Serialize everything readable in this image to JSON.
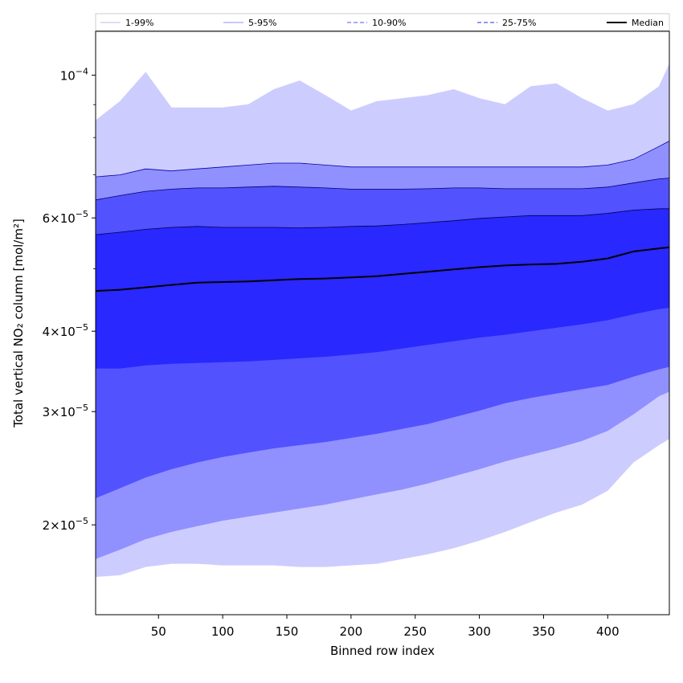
{
  "chart_data": {
    "type": "area",
    "title": "",
    "xlabel": "Binned row index",
    "ylabel": "Total vertical NO₂ column [mol/m²]",
    "yscale": "log",
    "xlim": [
      1,
      448
    ],
    "ylim": [
      1.45e-05,
      0.000117
    ],
    "grid": false,
    "legend_position": "top",
    "x_ticks": [
      {
        "value": 50,
        "label": "50"
      },
      {
        "value": 100,
        "label": "100"
      },
      {
        "value": 150,
        "label": "150"
      },
      {
        "value": 200,
        "label": "200"
      },
      {
        "value": 250,
        "label": "250"
      },
      {
        "value": 300,
        "label": "300"
      },
      {
        "value": 350,
        "label": "350"
      },
      {
        "value": 400,
        "label": "400"
      }
    ],
    "y_ticks": [
      {
        "value": 2e-05,
        "base": "2",
        "exp": "−5"
      },
      {
        "value": 3e-05,
        "base": "3",
        "exp": "−5"
      },
      {
        "value": 4e-05,
        "base": "4",
        "exp": "−5"
      },
      {
        "value": 6e-05,
        "base": "6",
        "exp": "−5"
      },
      {
        "value": 0.0001,
        "base": "",
        "exp": "−4"
      }
    ],
    "y_minor_ticks": [
      5e-05,
      7e-05,
      8e-05,
      9e-05
    ],
    "x": [
      1,
      20,
      40,
      60,
      80,
      100,
      120,
      140,
      160,
      180,
      200,
      220,
      240,
      260,
      280,
      300,
      320,
      340,
      360,
      380,
      400,
      420,
      440,
      448
    ],
    "bands": [
      {
        "name": "1-99%",
        "fill": "#ccccff",
        "stroke": "#ccccff",
        "dash": "",
        "lower": [
          1.66e-05,
          1.67e-05,
          1.72e-05,
          1.74e-05,
          1.74e-05,
          1.73e-05,
          1.73e-05,
          1.73e-05,
          1.72e-05,
          1.72e-05,
          1.73e-05,
          1.74e-05,
          1.77e-05,
          1.8e-05,
          1.84e-05,
          1.89e-05,
          1.95e-05,
          2.02e-05,
          2.09e-05,
          2.15e-05,
          2.26e-05,
          2.5e-05,
          2.66e-05,
          2.72e-05
        ],
        "upper": [
          8.5e-05,
          9.1e-05,
          0.000101,
          8.9e-05,
          8.9e-05,
          8.9e-05,
          9e-05,
          9.5e-05,
          9.8e-05,
          9.3e-05,
          8.8e-05,
          9.1e-05,
          9.2e-05,
          9.3e-05,
          9.5e-05,
          9.2e-05,
          9e-05,
          9.6e-05,
          9.7e-05,
          9.2e-05,
          8.8e-05,
          9e-05,
          9.6e-05,
          0.000104
        ]
      },
      {
        "name": "5-95%",
        "fill": "#9090ff",
        "stroke": "#0000aa",
        "dash": "",
        "lower": [
          1.77e-05,
          1.83e-05,
          1.9e-05,
          1.95e-05,
          1.99e-05,
          2.03e-05,
          2.06e-05,
          2.09e-05,
          2.12e-05,
          2.15e-05,
          2.19e-05,
          2.23e-05,
          2.27e-05,
          2.32e-05,
          2.38e-05,
          2.44e-05,
          2.51e-05,
          2.57e-05,
          2.63e-05,
          2.7e-05,
          2.8e-05,
          2.97e-05,
          3.17e-05,
          3.22e-05
        ],
        "upper": [
          6.95e-05,
          7e-05,
          7.15e-05,
          7.1e-05,
          7.15e-05,
          7.2e-05,
          7.25e-05,
          7.3e-05,
          7.3e-05,
          7.25e-05,
          7.2e-05,
          7.2e-05,
          7.2e-05,
          7.2e-05,
          7.2e-05,
          7.2e-05,
          7.2e-05,
          7.2e-05,
          7.2e-05,
          7.2e-05,
          7.25e-05,
          7.4e-05,
          7.75e-05,
          7.9e-05
        ]
      },
      {
        "name": "10-90%",
        "fill": "#5252ff",
        "stroke": "#00006e",
        "dash": "5,3",
        "lower": [
          2.2e-05,
          2.28e-05,
          2.37e-05,
          2.44e-05,
          2.5e-05,
          2.55e-05,
          2.59e-05,
          2.63e-05,
          2.66e-05,
          2.69e-05,
          2.73e-05,
          2.77e-05,
          2.82e-05,
          2.87e-05,
          2.94e-05,
          3.01e-05,
          3.09e-05,
          3.15e-05,
          3.2e-05,
          3.25e-05,
          3.3e-05,
          3.4e-05,
          3.49e-05,
          3.52e-05
        ],
        "upper": [
          6.4e-05,
          6.5e-05,
          6.6e-05,
          6.65e-05,
          6.68e-05,
          6.68e-05,
          6.7e-05,
          6.72e-05,
          6.7e-05,
          6.68e-05,
          6.65e-05,
          6.65e-05,
          6.65e-05,
          6.66e-05,
          6.68e-05,
          6.68e-05,
          6.66e-05,
          6.66e-05,
          6.66e-05,
          6.66e-05,
          6.7e-05,
          6.8e-05,
          6.9e-05,
          6.92e-05
        ]
      },
      {
        "name": "25-75%",
        "fill": "#2828ff",
        "stroke": "#000050",
        "dash": "5,3",
        "lower": [
          3.5e-05,
          3.5e-05,
          3.54e-05,
          3.56e-05,
          3.57e-05,
          3.58e-05,
          3.59e-05,
          3.61e-05,
          3.63e-05,
          3.65e-05,
          3.68e-05,
          3.71e-05,
          3.76e-05,
          3.81e-05,
          3.86e-05,
          3.91e-05,
          3.95e-05,
          4e-05,
          4.05e-05,
          4.1e-05,
          4.16e-05,
          4.25e-05,
          4.33e-05,
          4.35e-05
        ],
        "upper": [
          5.65e-05,
          5.7e-05,
          5.76e-05,
          5.8e-05,
          5.82e-05,
          5.8e-05,
          5.8e-05,
          5.8e-05,
          5.79e-05,
          5.8e-05,
          5.82e-05,
          5.83e-05,
          5.86e-05,
          5.9e-05,
          5.94e-05,
          5.99e-05,
          6.02e-05,
          6.05e-05,
          6.05e-05,
          6.05e-05,
          6.1e-05,
          6.17e-05,
          6.2e-05,
          6.2e-05
        ]
      }
    ],
    "median": {
      "name": "Median",
      "color": "#000000",
      "values": [
        4.62e-05,
        4.64e-05,
        4.68e-05,
        4.72e-05,
        4.76e-05,
        4.77e-05,
        4.78e-05,
        4.8e-05,
        4.82e-05,
        4.83e-05,
        4.85e-05,
        4.87e-05,
        4.91e-05,
        4.95e-05,
        4.99e-05,
        5.03e-05,
        5.06e-05,
        5.08e-05,
        5.09e-05,
        5.13e-05,
        5.19e-05,
        5.32e-05,
        5.38e-05,
        5.4e-05
      ]
    }
  }
}
